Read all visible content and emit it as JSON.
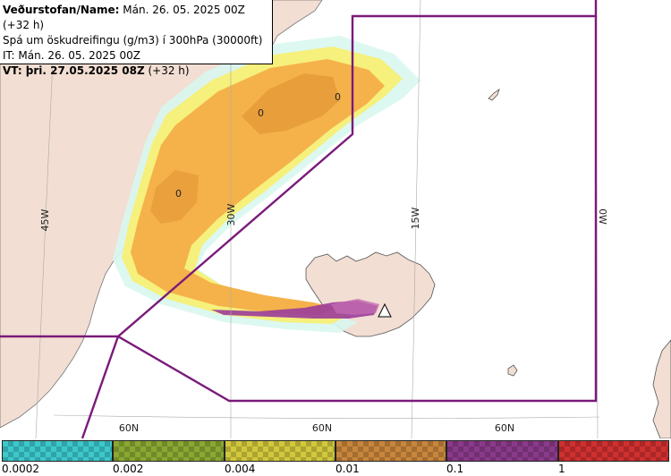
{
  "header": {
    "line1_bold": "Veðurstofan/Name:",
    "line1_rest": " Mán. 26. 05. 2025 00Z (+32 h)",
    "line2": "Spá um öskudreifingu (g/m3) í 300hPa (30000ft)",
    "line3": "IT: Mán. 26. 05. 2025 00Z",
    "line4_bold": "VT: þri. 27.05.2025 08Z",
    "line4_rest": " (+32 h)"
  },
  "map": {
    "lon_labels": [
      "45W",
      "30W",
      "15W",
      "0W"
    ],
    "lat_labels": [
      "60N",
      "60N",
      "60N"
    ],
    "contour_labels": [
      "0",
      "0",
      "0"
    ],
    "colors": {
      "land": "#f2ded3",
      "sea": "#ffffff",
      "fir_boundary": "#7a1a7a",
      "ash_very_low": "#7fe6e6",
      "ash_low": "#f2f27a",
      "ash_mid": "#f5b24a",
      "ash_high": "#e39a3c",
      "ash_core": "#9b3c9b"
    },
    "volcano_icon": "volcano-triangle-icon"
  },
  "legend": {
    "thresholds": [
      "0.0002",
      "0.002",
      "0.004",
      "0.01",
      "0.1",
      "1"
    ],
    "colors": [
      "#3cc8cc",
      "#8aa832",
      "#d2c83c",
      "#c8863c",
      "#8a3a8a",
      "#d03030"
    ]
  }
}
